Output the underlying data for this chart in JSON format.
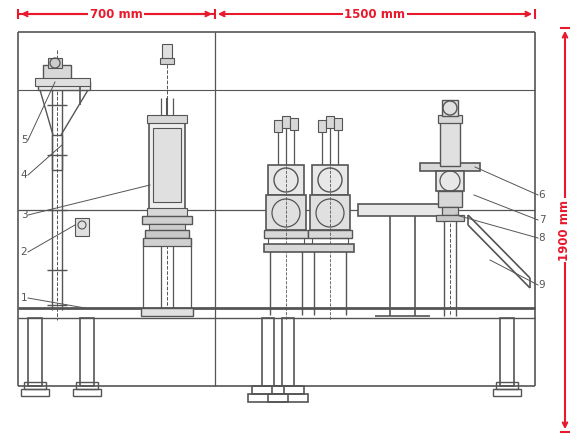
{
  "bg_color": "#ffffff",
  "lc": "#555555",
  "rc": "#e8192c",
  "fig_w": 5.88,
  "fig_h": 4.44,
  "dim_700": "700 mm",
  "dim_1500": "1500 mm",
  "dim_1900": "1900 mm"
}
